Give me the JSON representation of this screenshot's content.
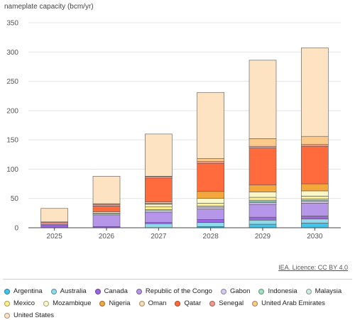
{
  "chart_data": {
    "type": "bar",
    "stacked": true,
    "ylabel": "nameplate capacity (bcm/yr)",
    "ylim": [
      0,
      350
    ],
    "yticks": [
      0,
      50,
      100,
      150,
      200,
      250,
      300,
      350
    ],
    "categories": [
      "2025",
      "2026",
      "2027",
      "2028",
      "2029",
      "2030"
    ],
    "grid": true,
    "legend_position": "bottom",
    "series": [
      {
        "name": "Argentina",
        "color": "#3ec6f0",
        "values": [
          0,
          0,
          0,
          2,
          6,
          8
        ]
      },
      {
        "name": "Australia",
        "color": "#8ed9ea",
        "values": [
          0,
          0,
          7,
          7,
          7,
          7
        ]
      },
      {
        "name": "Canada",
        "color": "#9b66e0",
        "values": [
          4,
          2,
          2,
          5,
          5,
          5
        ]
      },
      {
        "name": "Republic of the Congo",
        "color": "#b596e8",
        "values": [
          2,
          20,
          17,
          18,
          22,
          22
        ]
      },
      {
        "name": "Gabon",
        "color": "#d6cbf2",
        "values": [
          0,
          0,
          3,
          3,
          3,
          3
        ]
      },
      {
        "name": "Indonesia",
        "color": "#9ee0c0",
        "values": [
          0,
          0,
          0,
          0,
          2,
          2
        ]
      },
      {
        "name": "Malaysia",
        "color": "#cfeadd",
        "values": [
          0,
          2,
          2,
          2,
          2,
          2
        ]
      },
      {
        "name": "Mexico",
        "color": "#fdf08a",
        "values": [
          0,
          1,
          5,
          5,
          5,
          5
        ]
      },
      {
        "name": "Mozambique",
        "color": "#fbf7c8",
        "values": [
          0,
          2,
          4,
          8,
          9,
          9
        ]
      },
      {
        "name": "Nigeria",
        "color": "#f4a73a",
        "values": [
          0,
          0,
          2,
          12,
          12,
          12
        ]
      },
      {
        "name": "Oman",
        "color": "#f7dcb0",
        "values": [
          0,
          0,
          2,
          0,
          0,
          0
        ]
      },
      {
        "name": "Qatar",
        "color": "#ff6b3d",
        "values": [
          0,
          10,
          40,
          48,
          63,
          64
        ]
      },
      {
        "name": "Senegal",
        "color": "#f29a8a",
        "values": [
          3,
          3,
          3,
          3,
          3,
          3
        ]
      },
      {
        "name": "United Arab Emirates",
        "color": "#fbc98a",
        "values": [
          1,
          1,
          1,
          5,
          13,
          14
        ]
      },
      {
        "name": "United States",
        "color": "#fde3c2",
        "values": [
          23,
          47,
          72,
          113,
          134,
          151
        ]
      }
    ]
  },
  "credit": "IEA. Licence: CC BY 4.0"
}
